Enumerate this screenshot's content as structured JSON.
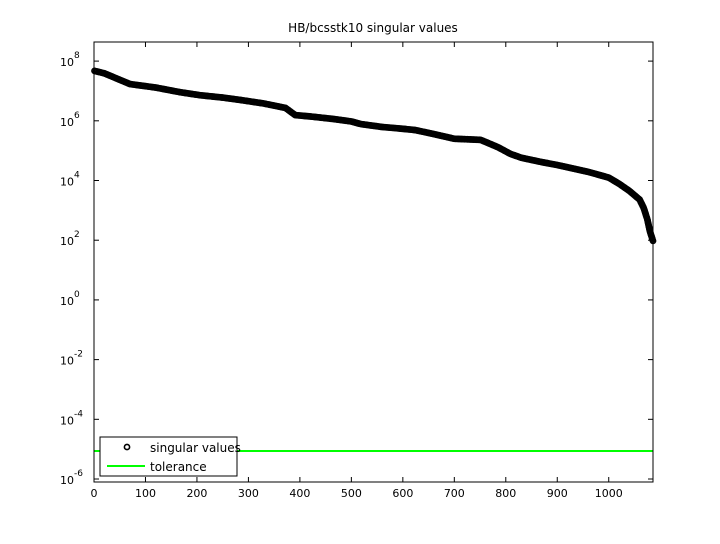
{
  "chart_data": {
    "type": "scatter",
    "title": "HB/bcsstk10 singular values",
    "xlabel": "",
    "ylabel": "",
    "xlim": [
      0,
      1086
    ],
    "ylim_log10": [
      -6.1,
      8.64
    ],
    "y_scale": "log",
    "grid": false,
    "legend_placement": "bottom-left",
    "x_ticks": [
      0,
      100,
      200,
      300,
      400,
      500,
      600,
      700,
      800,
      900,
      1000
    ],
    "x_tick_labels": [
      "0",
      "100",
      "200",
      "300",
      "400",
      "500",
      "600",
      "700",
      "800",
      "900",
      "1000"
    ],
    "y_ticks_exponent": [
      8,
      6,
      4,
      2,
      0,
      -2,
      -4,
      -6
    ],
    "y_tick_base": "10",
    "y_tick_exponents": [
      "8",
      "6",
      "4",
      "2",
      "0",
      "-2",
      "-4",
      "-6"
    ],
    "series": [
      {
        "name": "singular values",
        "marker": "circle",
        "color": "#000000",
        "x": [
          1,
          20,
          70,
          120,
          167,
          206,
          250,
          284,
          330,
          372,
          391,
          420,
          465,
          500,
          518,
          560,
          600,
          624,
          660,
          700,
          751,
          761,
          785,
          809,
          830,
          868,
          900,
          960,
          1000,
          1020,
          1040,
          1060,
          1068,
          1075,
          1080,
          1086
        ],
        "y": [
          47000000.0,
          39000000.0,
          17000000.0,
          13000000.0,
          9100000.0,
          7200000.0,
          6000000.0,
          5000000.0,
          3800000.0,
          2700000.0,
          1550000.0,
          1400000.0,
          1150000.0,
          950000.0,
          780000.0,
          620000.0,
          540000.0,
          490000.0,
          360000.0,
          250000.0,
          230000.0,
          195000.0,
          130000.0,
          78000.0,
          58000.0,
          42000.0,
          33000.0,
          19500.0,
          12500.0,
          7800.0,
          4500.0,
          2300.0,
          1200.0,
          500,
          200,
          95
        ]
      },
      {
        "name": "tolerance",
        "color": "#00ff00",
        "y_constant": 8.7e-06
      }
    ]
  }
}
